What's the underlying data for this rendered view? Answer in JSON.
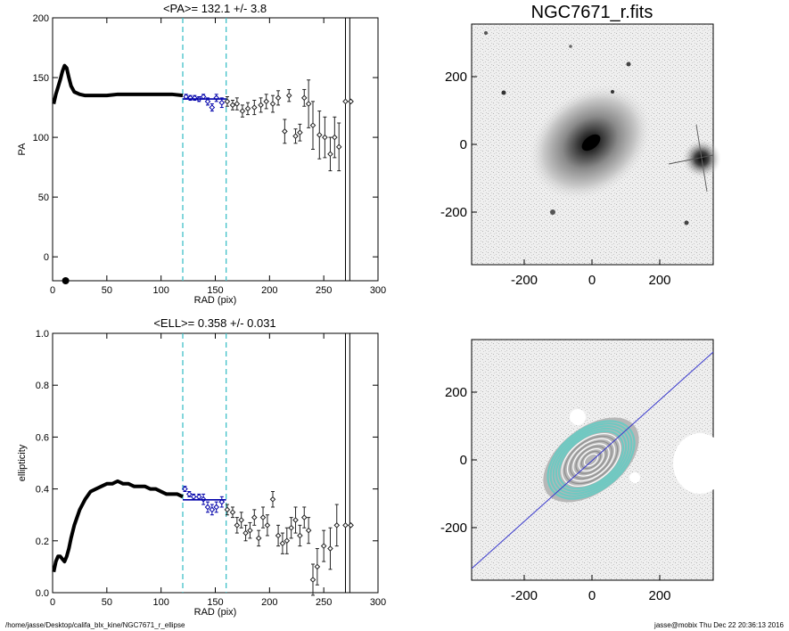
{
  "colors": {
    "fit": "#0000aa",
    "dash": "#40c0c8",
    "data": "#000000",
    "isophote": "#6ec9c2"
  },
  "footer": {
    "path": "/home/jasse/Desktop/califa_blx_kine/NGC7671_r_ellipse",
    "user": "jasse@mobix  Thu Dec 22 20:36:13 2016"
  },
  "image_panel": {
    "title": "NGC7671_r.fits",
    "ticks": [
      "-200",
      "0",
      "200"
    ],
    "xticks": [
      "-200",
      "0",
      "200"
    ]
  },
  "chart_data": [
    {
      "type": "scatter",
      "title": "<PA>= 132.1 +/-   3.8",
      "xlabel": "RAD (pix)",
      "ylabel": "PA",
      "xlim": [
        0,
        300
      ],
      "ylim": [
        -20,
        200
      ],
      "xticks": [
        "0",
        "50",
        "100",
        "150",
        "200",
        "250",
        "300"
      ],
      "yticks": [
        "0",
        "50",
        "100",
        "150",
        "200"
      ],
      "vlines_dashed": [
        120,
        160
      ],
      "vlines_solid": [
        270,
        274
      ],
      "mean_fit": {
        "x": [
          120,
          160
        ],
        "y": 132.1
      },
      "profile_x": [
        1,
        3,
        5,
        7,
        9,
        11,
        13,
        15,
        17,
        20,
        25,
        30,
        40,
        50,
        60,
        70,
        80,
        90,
        100,
        110,
        120
      ],
      "profile_y": [
        128,
        136,
        142,
        148,
        155,
        160,
        158,
        150,
        143,
        138,
        136,
        135,
        135,
        135,
        136,
        136,
        136,
        136,
        136,
        136,
        135
      ],
      "sparse_points": [
        {
          "x": 123,
          "y": 134,
          "e": 2
        },
        {
          "x": 127,
          "y": 133,
          "e": 2
        },
        {
          "x": 131,
          "y": 133,
          "e": 2
        },
        {
          "x": 135,
          "y": 132,
          "e": 2
        },
        {
          "x": 139,
          "y": 134,
          "e": 2
        },
        {
          "x": 143,
          "y": 130,
          "e": 3
        },
        {
          "x": 147,
          "y": 125,
          "e": 3
        },
        {
          "x": 151,
          "y": 133,
          "e": 3
        },
        {
          "x": 156,
          "y": 129,
          "e": 4
        },
        {
          "x": 161,
          "y": 130,
          "e": 4
        },
        {
          "x": 166,
          "y": 127,
          "e": 4
        },
        {
          "x": 170,
          "y": 128,
          "e": 5
        },
        {
          "x": 175,
          "y": 122,
          "e": 5
        },
        {
          "x": 180,
          "y": 124,
          "e": 5
        },
        {
          "x": 186,
          "y": 125,
          "e": 6
        },
        {
          "x": 192,
          "y": 127,
          "e": 6
        },
        {
          "x": 197,
          "y": 130,
          "e": 6
        },
        {
          "x": 203,
          "y": 128,
          "e": 7
        },
        {
          "x": 208,
          "y": 133,
          "e": 6
        },
        {
          "x": 214,
          "y": 105,
          "e": 10
        },
        {
          "x": 218,
          "y": 135,
          "e": 5
        },
        {
          "x": 224,
          "y": 101,
          "e": 6
        },
        {
          "x": 228,
          "y": 104,
          "e": 7
        },
        {
          "x": 232,
          "y": 133,
          "e": 7
        },
        {
          "x": 236,
          "y": 128,
          "e": 20
        },
        {
          "x": 240,
          "y": 110,
          "e": 20
        },
        {
          "x": 246,
          "y": 102,
          "e": 20
        },
        {
          "x": 251,
          "y": 100,
          "e": 17
        },
        {
          "x": 256,
          "y": 86,
          "e": 14
        },
        {
          "x": 260,
          "y": 100,
          "e": 17
        },
        {
          "x": 264,
          "y": 92,
          "e": 20
        },
        {
          "x": 270,
          "y": 130,
          "e": 0
        },
        {
          "x": 275,
          "y": 130,
          "e": 0
        }
      ]
    },
    {
      "type": "scatter",
      "title": "<ELL>= 0.358 +/-  0.031",
      "xlabel": "RAD (pix)",
      "ylabel": "ellipticity",
      "xlim": [
        0,
        300
      ],
      "ylim": [
        0.0,
        1.0
      ],
      "xticks": [
        "0",
        "50",
        "100",
        "150",
        "200",
        "250",
        "300"
      ],
      "yticks": [
        "0.0",
        "0.2",
        "0.4",
        "0.6",
        "0.8",
        "1.0"
      ],
      "vlines_dashed": [
        120,
        160
      ],
      "vlines_solid": [
        270,
        274
      ],
      "mean_fit": {
        "x": [
          120,
          160
        ],
        "y": 0.358
      },
      "profile_x": [
        1,
        3,
        5,
        7,
        9,
        11,
        13,
        15,
        17,
        20,
        25,
        30,
        35,
        40,
        45,
        50,
        55,
        60,
        65,
        70,
        75,
        80,
        85,
        90,
        95,
        100,
        105,
        110,
        115,
        120
      ],
      "profile_y": [
        0.08,
        0.12,
        0.14,
        0.14,
        0.13,
        0.12,
        0.14,
        0.17,
        0.21,
        0.26,
        0.32,
        0.36,
        0.39,
        0.4,
        0.41,
        0.42,
        0.42,
        0.43,
        0.42,
        0.42,
        0.41,
        0.41,
        0.41,
        0.4,
        0.4,
        0.39,
        0.38,
        0.38,
        0.38,
        0.37
      ],
      "sparse_points": [
        {
          "x": 122,
          "y": 0.4,
          "e": 0.01
        },
        {
          "x": 126,
          "y": 0.38,
          "e": 0.01
        },
        {
          "x": 130,
          "y": 0.37,
          "e": 0.01
        },
        {
          "x": 135,
          "y": 0.37,
          "e": 0.01
        },
        {
          "x": 139,
          "y": 0.36,
          "e": 0.02
        },
        {
          "x": 143,
          "y": 0.33,
          "e": 0.02
        },
        {
          "x": 147,
          "y": 0.32,
          "e": 0.02
        },
        {
          "x": 151,
          "y": 0.33,
          "e": 0.02
        },
        {
          "x": 156,
          "y": 0.35,
          "e": 0.02
        },
        {
          "x": 161,
          "y": 0.32,
          "e": 0.02
        },
        {
          "x": 166,
          "y": 0.31,
          "e": 0.02
        },
        {
          "x": 170,
          "y": 0.26,
          "e": 0.03
        },
        {
          "x": 174,
          "y": 0.28,
          "e": 0.03
        },
        {
          "x": 178,
          "y": 0.23,
          "e": 0.03
        },
        {
          "x": 182,
          "y": 0.24,
          "e": 0.03
        },
        {
          "x": 186,
          "y": 0.29,
          "e": 0.03
        },
        {
          "x": 190,
          "y": 0.21,
          "e": 0.03
        },
        {
          "x": 194,
          "y": 0.29,
          "e": 0.04
        },
        {
          "x": 198,
          "y": 0.26,
          "e": 0.04
        },
        {
          "x": 203,
          "y": 0.36,
          "e": 0.03
        },
        {
          "x": 208,
          "y": 0.22,
          "e": 0.04
        },
        {
          "x": 212,
          "y": 0.19,
          "e": 0.04
        },
        {
          "x": 216,
          "y": 0.2,
          "e": 0.05
        },
        {
          "x": 220,
          "y": 0.25,
          "e": 0.04
        },
        {
          "x": 224,
          "y": 0.28,
          "e": 0.05
        },
        {
          "x": 228,
          "y": 0.22,
          "e": 0.04
        },
        {
          "x": 232,
          "y": 0.29,
          "e": 0.04
        },
        {
          "x": 236,
          "y": 0.24,
          "e": 0.05
        },
        {
          "x": 240,
          "y": 0.05,
          "e": 0.06
        },
        {
          "x": 244,
          "y": 0.1,
          "e": 0.07
        },
        {
          "x": 250,
          "y": 0.18,
          "e": 0.06
        },
        {
          "x": 256,
          "y": 0.17,
          "e": 0.08
        },
        {
          "x": 262,
          "y": 0.26,
          "e": 0.08
        },
        {
          "x": 270,
          "y": 0.26,
          "e": 0
        },
        {
          "x": 275,
          "y": 0.26,
          "e": 0
        }
      ]
    }
  ]
}
